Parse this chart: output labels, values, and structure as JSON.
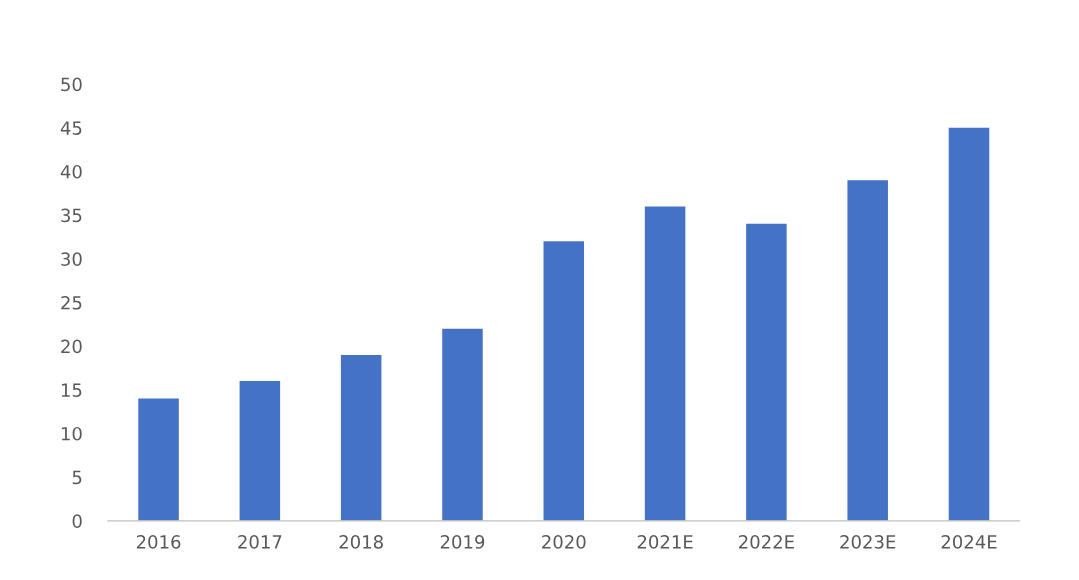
{
  "chart_data": {
    "type": "bar",
    "categories": [
      "2016",
      "2017",
      "2018",
      "2019",
      "2020",
      "2021E",
      "2022E",
      "2023E",
      "2024E"
    ],
    "values": [
      14,
      16,
      19,
      22,
      32,
      36,
      34,
      39,
      45
    ],
    "color": "#4472c4",
    "ylim": [
      0,
      50
    ],
    "yticks": [
      0,
      5,
      10,
      15,
      20,
      25,
      30,
      35,
      40,
      45,
      50
    ],
    "grid": false
  }
}
